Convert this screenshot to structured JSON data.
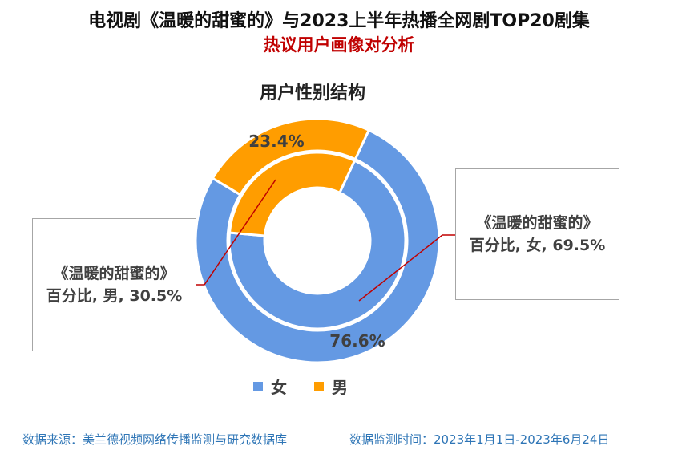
{
  "header": {
    "title": "电视剧《温暖的甜蜜的》与2023上半年热播全网剧TOP20剧集",
    "subtitle": "热议用户画像对分析"
  },
  "chart_data": {
    "type": "donut",
    "title": "用户性别结构",
    "categories": [
      "女",
      "男"
    ],
    "series": [
      {
        "ring": "outer",
        "values": [
          76.6,
          23.4
        ],
        "labels": [
          "76.6%",
          "23.4%"
        ]
      },
      {
        "ring": "inner",
        "values": [
          69.5,
          30.5
        ]
      }
    ],
    "colors": {
      "女": "#6499e3",
      "男": "#ff9d00"
    },
    "legend": {
      "placement": "bottom",
      "items": [
        "女",
        "男"
      ]
    },
    "callouts": {
      "female": {
        "line1": "《温暖的甜蜜的》",
        "line2": "百分比, 女, 69.5%"
      },
      "male": {
        "line1": "《温暖的甜蜜的》",
        "line2": "百分比, 男, 30.5%"
      }
    }
  },
  "footer": {
    "source": "数据来源：美兰德视频网络传播监测与研究数据库",
    "period": "数据监测时间：2023年1月1日-2023年6月24日"
  }
}
